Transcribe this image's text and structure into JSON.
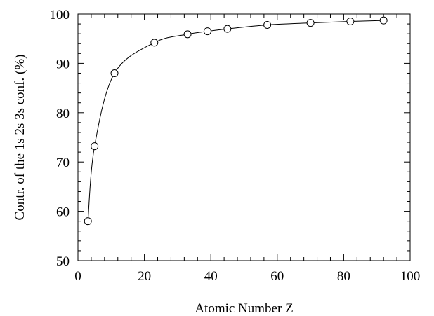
{
  "chart_data": {
    "type": "line",
    "title": "",
    "xlabel": "Atomic Number Z",
    "ylabel": "Contr. of the 1s 2s 3s conf. (%)",
    "xlim": [
      0,
      100
    ],
    "ylim": [
      50,
      100
    ],
    "x_major_ticks": [
      0,
      20,
      40,
      60,
      80,
      100
    ],
    "x_tick_labels": [
      "0",
      "20",
      "40",
      "60",
      "80",
      "100"
    ],
    "x_minor_step": 4,
    "y_major_ticks": [
      50,
      60,
      70,
      80,
      90,
      100
    ],
    "y_tick_labels": [
      "50",
      "60",
      "70",
      "80",
      "90",
      "100"
    ],
    "y_minor_step": 2,
    "grid": false,
    "series": [
      {
        "marker": "open-circle",
        "line": "solid",
        "color": "#000000",
        "x": [
          3,
          5,
          11,
          23,
          33,
          39,
          45,
          57,
          70,
          82,
          92
        ],
        "y": [
          58.0,
          73.2,
          88.0,
          94.2,
          95.9,
          96.5,
          97.0,
          97.8,
          98.2,
          98.5,
          98.7
        ]
      }
    ]
  }
}
